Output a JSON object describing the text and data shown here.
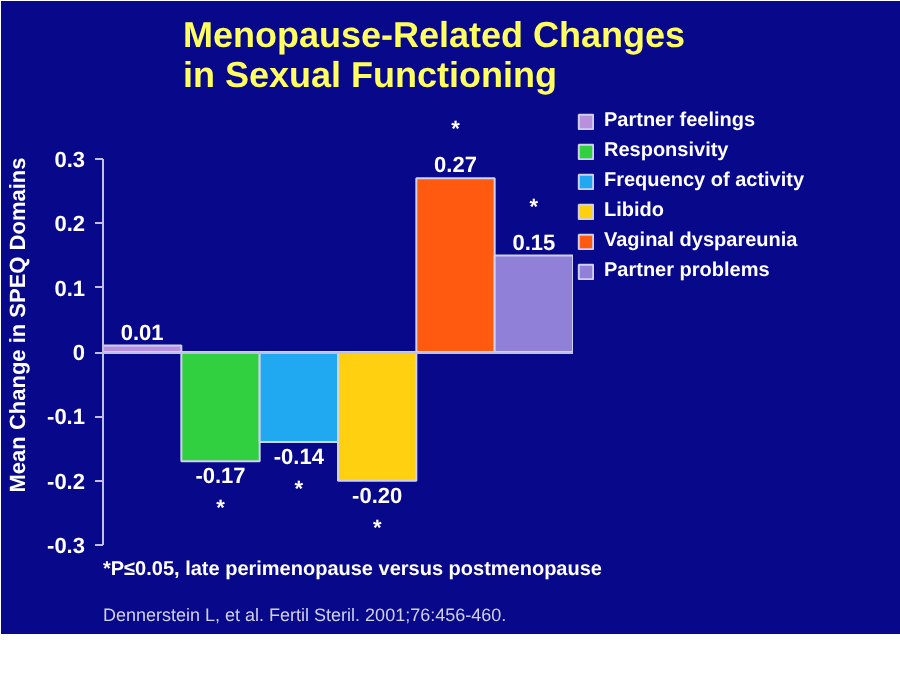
{
  "chart_data": {
    "type": "bar",
    "title": "Menopause-Related Changes\nin Sexual Functioning",
    "ylabel": "Mean Change in SPEQ Domains",
    "categories": [
      null,
      null,
      null,
      null,
      null,
      null
    ],
    "ylim": [
      -0.3,
      0.3
    ],
    "yticks": [
      0.3,
      0.2,
      0.1,
      0,
      -0.1,
      -0.2,
      -0.3
    ],
    "tick_labels": "y",
    "legend": "right",
    "series": [
      {
        "name": "Partner feelings",
        "color": "#b890e0",
        "values": [
          0.01,
          null,
          null,
          null,
          null,
          null
        ],
        "value_labels": [
          "0.01",
          null,
          null,
          null,
          null,
          null
        ]
      },
      {
        "name": "Responsivity",
        "color": "#30d040",
        "values": [
          null,
          -0.17,
          null,
          null,
          null,
          null
        ],
        "value_labels": [
          null,
          "-0.17",
          null,
          null,
          null,
          null
        ]
      },
      {
        "name": "Frequency of activity",
        "color": "#20a8f0",
        "values": [
          null,
          null,
          -0.14,
          null,
          null,
          null
        ],
        "value_labels": [
          null,
          null,
          "-0.14",
          null,
          null,
          null
        ]
      },
      {
        "name": "Libido",
        "color": "#ffd010",
        "values": [
          null,
          null,
          null,
          -0.2,
          null,
          null
        ],
        "value_labels": [
          null,
          null,
          null,
          "-0.20",
          null,
          null
        ]
      },
      {
        "name": "Vaginal dyspareunia",
        "color": "#ff5a10",
        "values": [
          null,
          null,
          null,
          null,
          0.27,
          null
        ],
        "value_labels": [
          null,
          null,
          null,
          null,
          "0.27",
          null
        ]
      },
      {
        "name": "Partner problems",
        "color": "#9080d8",
        "values": [
          null,
          null,
          null,
          null,
          null,
          0.15
        ],
        "value_labels": [
          null,
          null,
          null,
          null,
          null,
          "0.15"
        ]
      }
    ],
    "annotations": [
      {
        "text": "*",
        "y": -0.17
      },
      {
        "text": "*",
        "y": -0.14
      },
      {
        "text": "*",
        "y": -0.2
      },
      {
        "text": "*",
        "y": 0.27
      },
      {
        "text": "*",
        "y": 0.15
      },
      "*P≤0.05, late perimenopause versus postmenopause",
      "Dennerstein L, et al. Fertil Steril. 2001;76:456-460."
    ]
  }
}
